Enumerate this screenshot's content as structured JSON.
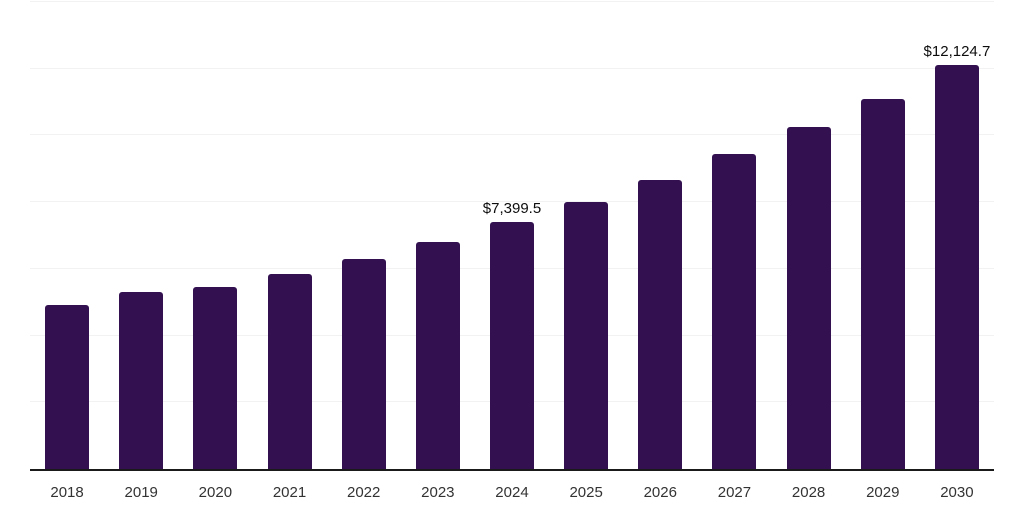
{
  "chart_data": {
    "type": "bar",
    "title": "",
    "xlabel": "",
    "ylabel": "",
    "categories": [
      "2018",
      "2019",
      "2020",
      "2021",
      "2022",
      "2023",
      "2024",
      "2025",
      "2026",
      "2027",
      "2028",
      "2029",
      "2030"
    ],
    "values": [
      4905,
      5295,
      5445,
      5860,
      6310,
      6820,
      7399.5,
      8015,
      8675,
      9435,
      10245,
      11095,
      12124.7
    ],
    "ylim": [
      0,
      14000
    ],
    "gridline_step": 2000,
    "grid": "horizontal-only",
    "y_axis_tick_labels_visible": false,
    "legend_position": "none",
    "annotations": [
      {
        "category": "2024",
        "text": "$7,399.5"
      },
      {
        "category": "2030",
        "text": "$12,124.7"
      }
    ]
  },
  "colors": {
    "bar": "#331150",
    "gridline": "#f2f2f2",
    "axis_line": "#1a1a1a",
    "tick_label": "#333333",
    "data_label": "#0d0d0d",
    "background": "#ffffff"
  }
}
